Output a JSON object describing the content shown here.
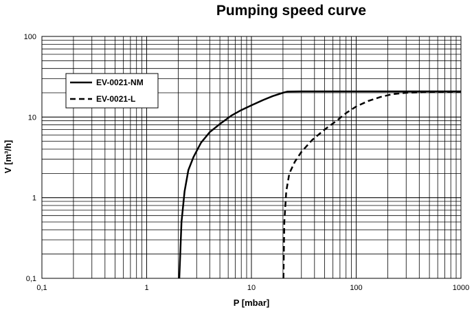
{
  "chart_data": {
    "type": "line",
    "title": "Pumping speed curve",
    "xlabel": "P [mbar]",
    "ylabel": "V [m³/h]",
    "xscale": "log",
    "yscale": "log",
    "xlim": [
      0.1,
      1000
    ],
    "ylim": [
      0.1,
      100
    ],
    "xticks": [
      {
        "value": 0.1,
        "label": "0,1"
      },
      {
        "value": 1,
        "label": "1"
      },
      {
        "value": 10,
        "label": "10"
      },
      {
        "value": 100,
        "label": "100"
      },
      {
        "value": 1000,
        "label": "1000"
      }
    ],
    "yticks": [
      {
        "value": 0.1,
        "label": "0,1"
      },
      {
        "value": 1,
        "label": "1"
      },
      {
        "value": 10,
        "label": "10"
      },
      {
        "value": 100,
        "label": "100"
      }
    ],
    "grid": true,
    "legend_position": "top-left",
    "series": [
      {
        "name": "EV-0021-NM",
        "style": "solid",
        "color": "#000000",
        "x": [
          2.05,
          2.15,
          2.3,
          2.5,
          2.8,
          3.3,
          4.0,
          5.0,
          6.5,
          8.0,
          10.0,
          13.0,
          16.0,
          20.0,
          22.0,
          30.0,
          50.0,
          100.0,
          200.0,
          500.0,
          1000.0
        ],
        "y": [
          0.1,
          0.5,
          1.2,
          2.2,
          3.2,
          4.8,
          6.5,
          8.2,
          10.5,
          12.2,
          14.0,
          16.3,
          18.2,
          20.0,
          20.7,
          20.8,
          20.8,
          20.8,
          20.8,
          20.8,
          20.8
        ]
      },
      {
        "name": "EV-0021-L",
        "style": "dashed",
        "color": "#000000",
        "x": [
          20.2,
          20.6,
          21.5,
          23.0,
          26.0,
          30.0,
          38.0,
          50.0,
          65.0,
          80.0,
          100.0,
          130.0,
          170.0,
          220.0,
          300.0,
          500.0,
          1000.0
        ],
        "y": [
          0.1,
          0.5,
          1.2,
          2.0,
          2.8,
          3.7,
          5.2,
          7.0,
          9.0,
          11.2,
          13.5,
          15.8,
          17.7,
          19.2,
          20.0,
          20.4,
          20.6
        ]
      }
    ]
  }
}
